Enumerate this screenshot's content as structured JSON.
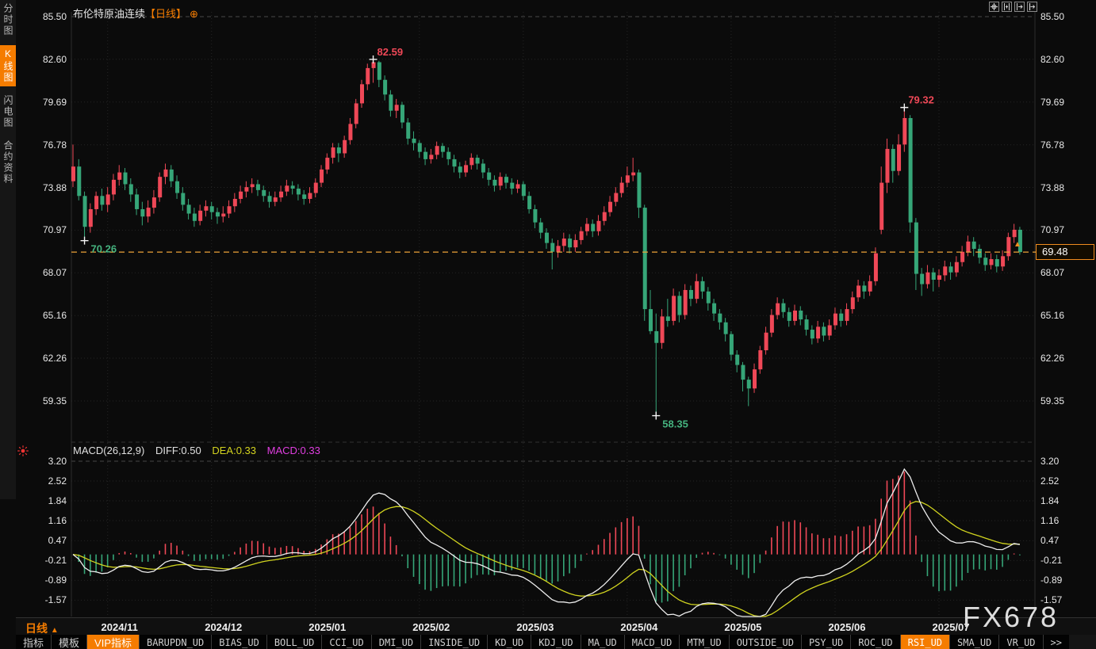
{
  "header": {
    "title": "布伦特原油连续",
    "period_tag": "【日线】",
    "add_icon": "⊕"
  },
  "toolbar_icons": [
    {
      "name": "pan-crosshair-icon"
    },
    {
      "name": "fit-y-axis-icon"
    },
    {
      "name": "fit-x-axis-icon"
    },
    {
      "name": "shift-right-icon"
    }
  ],
  "sidebar": {
    "items": [
      {
        "label": "分时图",
        "active": false
      },
      {
        "label": "K线图",
        "active": true
      },
      {
        "label": "闪电图",
        "active": false
      },
      {
        "label": "合约资料",
        "active": false
      }
    ]
  },
  "macd_header": {
    "name": "MACD(26,12,9)",
    "diff": "DIFF:0.50",
    "dea": "DEA:0.33",
    "macd": "MACD:0.33"
  },
  "last_price": {
    "label": "69.48",
    "value": 69.48,
    "marker": "▲"
  },
  "period": {
    "label": "日线",
    "marker": "▲"
  },
  "watermark": "FX678",
  "bottom_tabs": [
    {
      "label": "指标",
      "cjk": true,
      "active": false
    },
    {
      "label": "模板",
      "cjk": true,
      "active": false
    },
    {
      "label": "VIP指标",
      "cjk": true,
      "active": true
    },
    {
      "label": "BARUPDN_UD",
      "active": false
    },
    {
      "label": "BIAS_UD",
      "active": false
    },
    {
      "label": "BOLL_UD",
      "active": false
    },
    {
      "label": "CCI_UD",
      "active": false
    },
    {
      "label": "DMI_UD",
      "active": false
    },
    {
      "label": "INSIDE_UD",
      "active": false
    },
    {
      "label": "KD_UD",
      "active": false
    },
    {
      "label": "KDJ_UD",
      "active": false
    },
    {
      "label": "MA_UD",
      "active": false
    },
    {
      "label": "MACD_UD",
      "active": false
    },
    {
      "label": "MTM_UD",
      "active": false
    },
    {
      "label": "OUTSIDE_UD",
      "active": false
    },
    {
      "label": "PSY_UD",
      "active": false
    },
    {
      "label": "ROC_UD",
      "active": false
    },
    {
      "label": "RSI_UD",
      "active": true
    },
    {
      "label": "SMA_UD",
      "active": false
    },
    {
      "label": "VR_UD",
      "active": false
    },
    {
      "label": ">>",
      "active": false
    }
  ],
  "colors": {
    "up": "#ef4857",
    "down": "#36a678",
    "accent": "#f57c00",
    "dea_line": "#d0d31f",
    "diff_line": "#eeeeee",
    "macd_value": "#e03ee0",
    "anno_red": "#ef4857",
    "anno_green": "#45b37f",
    "last_price_line": "#eda338",
    "grid": "#242424",
    "grid_bright": "#474747",
    "axis_text": "#e8e8e8"
  },
  "chart_data": {
    "type": "candlestick+macd",
    "title": "布伦特原油连续 日线 (Brent Crude Oil Continuous, Daily)",
    "price_ticks": [
      85.5,
      82.6,
      79.69,
      76.78,
      73.88,
      70.97,
      68.07,
      65.16,
      62.26,
      59.35
    ],
    "macd_ticks": [
      3.2,
      2.52,
      1.84,
      1.16,
      0.47,
      -0.21,
      -0.89,
      -1.57
    ],
    "macd_params": {
      "slow": 26,
      "fast": 12,
      "signal": 9,
      "diff": 0.5,
      "dea": 0.33,
      "macd": 0.33
    },
    "months": [
      {
        "label": "2024/11",
        "start": 6
      },
      {
        "label": "2024/12",
        "start": 24
      },
      {
        "label": "2025/01",
        "start": 42
      },
      {
        "label": "2025/02",
        "start": 60
      },
      {
        "label": "2025/03",
        "start": 78
      },
      {
        "label": "2025/04",
        "start": 96
      },
      {
        "label": "2025/05",
        "start": 114
      },
      {
        "label": "2025/06",
        "start": 132
      },
      {
        "label": "2025/07",
        "start": 150
      }
    ],
    "annotations": [
      {
        "text": "82.59",
        "index": 52,
        "anchor": "high",
        "color": "#ef4857"
      },
      {
        "text": "79.32",
        "index": 144,
        "anchor": "high",
        "color": "#ef4857"
      },
      {
        "text": "70.26",
        "index": 2,
        "anchor": "low",
        "color": "#45b37f"
      },
      {
        "text": "58.35",
        "index": 101,
        "anchor": "low",
        "color": "#45b37f"
      }
    ],
    "last_close": 69.48,
    "candles": [
      [
        74.3,
        76.8,
        73.9,
        75.3
      ],
      [
        75.3,
        75.8,
        73.0,
        73.3
      ],
      [
        73.3,
        73.6,
        70.26,
        71.2
      ],
      [
        71.2,
        72.8,
        70.8,
        72.4
      ],
      [
        72.4,
        73.6,
        72.0,
        73.3
      ],
      [
        73.3,
        73.8,
        72.3,
        72.7
      ],
      [
        72.7,
        73.9,
        72.2,
        73.4
      ],
      [
        73.4,
        74.8,
        73.0,
        74.4
      ],
      [
        74.4,
        75.4,
        74.0,
        74.9
      ],
      [
        74.9,
        75.2,
        73.7,
        74.1
      ],
      [
        74.1,
        74.5,
        72.9,
        73.4
      ],
      [
        73.4,
        73.8,
        72.0,
        72.4
      ],
      [
        72.4,
        72.9,
        71.3,
        71.9
      ],
      [
        71.9,
        73.0,
        71.5,
        72.5
      ],
      [
        72.5,
        73.7,
        72.1,
        73.2
      ],
      [
        73.2,
        74.9,
        72.9,
        74.6
      ],
      [
        74.6,
        75.5,
        74.1,
        75.1
      ],
      [
        75.1,
        75.4,
        73.9,
        74.3
      ],
      [
        74.3,
        74.7,
        73.1,
        73.5
      ],
      [
        73.5,
        73.9,
        72.3,
        72.7
      ],
      [
        72.7,
        73.1,
        71.7,
        72.1
      ],
      [
        72.1,
        72.5,
        71.2,
        71.6
      ],
      [
        71.6,
        72.7,
        71.3,
        72.3
      ],
      [
        72.3,
        73.0,
        71.9,
        72.6
      ],
      [
        72.6,
        72.9,
        71.7,
        72.2
      ],
      [
        72.2,
        72.5,
        71.4,
        71.9
      ],
      [
        71.9,
        72.6,
        71.5,
        72.1
      ],
      [
        72.1,
        73.0,
        71.8,
        72.6
      ],
      [
        72.6,
        73.5,
        72.2,
        73.1
      ],
      [
        73.1,
        74.0,
        72.8,
        73.6
      ],
      [
        73.6,
        74.3,
        73.2,
        73.9
      ],
      [
        73.9,
        74.5,
        73.5,
        74.1
      ],
      [
        74.1,
        74.4,
        73.3,
        73.7
      ],
      [
        73.7,
        74.0,
        72.9,
        73.3
      ],
      [
        73.3,
        73.6,
        72.5,
        72.9
      ],
      [
        72.9,
        73.6,
        72.6,
        73.2
      ],
      [
        73.2,
        74.0,
        72.9,
        73.6
      ],
      [
        73.6,
        74.4,
        73.3,
        74.0
      ],
      [
        74.0,
        74.3,
        73.4,
        73.8
      ],
      [
        73.8,
        74.1,
        73.0,
        73.4
      ],
      [
        73.4,
        73.7,
        72.7,
        73.1
      ],
      [
        73.1,
        73.9,
        72.8,
        73.5
      ],
      [
        73.5,
        74.5,
        73.2,
        74.2
      ],
      [
        74.2,
        75.4,
        73.9,
        75.1
      ],
      [
        75.1,
        76.2,
        74.8,
        75.9
      ],
      [
        75.9,
        76.9,
        75.5,
        76.6
      ],
      [
        76.6,
        76.9,
        75.6,
        76.2
      ],
      [
        76.2,
        77.4,
        75.9,
        77.1
      ],
      [
        77.1,
        78.6,
        76.8,
        78.2
      ],
      [
        78.2,
        79.9,
        77.9,
        79.6
      ],
      [
        79.6,
        81.2,
        79.3,
        80.9
      ],
      [
        80.9,
        82.3,
        80.5,
        82.0
      ],
      [
        82.0,
        82.59,
        81.0,
        82.4
      ],
      [
        82.4,
        82.5,
        80.7,
        81.2
      ],
      [
        81.2,
        81.5,
        79.8,
        80.2
      ],
      [
        80.2,
        80.5,
        78.7,
        79.1
      ],
      [
        79.1,
        79.9,
        78.6,
        79.5
      ],
      [
        79.5,
        79.7,
        77.9,
        78.3
      ],
      [
        78.3,
        78.6,
        76.8,
        77.2
      ],
      [
        77.2,
        77.7,
        76.4,
        76.9
      ],
      [
        76.9,
        77.1,
        75.9,
        76.3
      ],
      [
        76.3,
        76.6,
        75.4,
        75.8
      ],
      [
        75.8,
        76.5,
        75.5,
        76.1
      ],
      [
        76.1,
        77.0,
        75.8,
        76.7
      ],
      [
        76.7,
        76.9,
        75.9,
        76.3
      ],
      [
        76.3,
        76.6,
        75.4,
        75.8
      ],
      [
        75.8,
        76.1,
        74.9,
        75.3
      ],
      [
        75.3,
        75.6,
        74.5,
        74.9
      ],
      [
        74.9,
        75.7,
        74.6,
        75.4
      ],
      [
        75.4,
        76.2,
        75.1,
        75.9
      ],
      [
        75.9,
        76.1,
        75.1,
        75.5
      ],
      [
        75.5,
        75.8,
        74.5,
        74.9
      ],
      [
        74.9,
        75.2,
        74.0,
        74.4
      ],
      [
        74.4,
        74.7,
        73.6,
        74.0
      ],
      [
        74.0,
        74.9,
        73.7,
        74.6
      ],
      [
        74.6,
        74.8,
        73.8,
        74.2
      ],
      [
        74.2,
        74.5,
        73.4,
        73.8
      ],
      [
        73.8,
        74.4,
        73.5,
        74.1
      ],
      [
        74.1,
        74.3,
        73.0,
        73.3
      ],
      [
        73.3,
        73.6,
        72.1,
        72.4
      ],
      [
        72.4,
        72.7,
        71.1,
        71.5
      ],
      [
        71.5,
        71.8,
        70.4,
        70.8
      ],
      [
        70.8,
        71.1,
        69.7,
        70.1
      ],
      [
        70.1,
        70.4,
        68.3,
        69.5
      ],
      [
        69.5,
        70.3,
        69.1,
        69.9
      ],
      [
        69.9,
        70.8,
        69.5,
        70.4
      ],
      [
        70.4,
        70.7,
        69.4,
        69.8
      ],
      [
        69.8,
        70.7,
        69.5,
        70.3
      ],
      [
        70.3,
        71.2,
        70.0,
        70.9
      ],
      [
        70.9,
        71.8,
        70.6,
        71.4
      ],
      [
        71.4,
        71.7,
        70.5,
        70.9
      ],
      [
        70.9,
        72.0,
        70.6,
        71.6
      ],
      [
        71.6,
        72.6,
        71.3,
        72.2
      ],
      [
        72.2,
        73.3,
        71.9,
        72.9
      ],
      [
        72.9,
        73.9,
        72.6,
        73.5
      ],
      [
        73.5,
        74.6,
        73.2,
        74.2
      ],
      [
        74.2,
        75.3,
        73.9,
        74.7
      ],
      [
        74.7,
        75.9,
        74.3,
        74.9
      ],
      [
        74.9,
        75.1,
        71.8,
        72.5
      ],
      [
        72.5,
        72.7,
        64.8,
        65.6
      ],
      [
        65.6,
        66.9,
        63.9,
        64.1
      ],
      [
        64.1,
        65.3,
        58.35,
        63.3
      ],
      [
        63.3,
        65.6,
        62.9,
        65.1
      ],
      [
        65.1,
        66.3,
        64.4,
        64.8
      ],
      [
        64.8,
        67.0,
        64.5,
        66.5
      ],
      [
        66.5,
        66.8,
        64.7,
        65.2
      ],
      [
        65.2,
        67.3,
        64.9,
        66.9
      ],
      [
        66.9,
        67.2,
        65.8,
        66.3
      ],
      [
        66.3,
        68.0,
        66.0,
        67.5
      ],
      [
        67.5,
        67.8,
        66.3,
        66.8
      ],
      [
        66.8,
        67.1,
        65.5,
        66.0
      ],
      [
        66.0,
        66.3,
        64.8,
        65.3
      ],
      [
        65.3,
        65.6,
        64.2,
        64.7
      ],
      [
        64.7,
        65.0,
        63.4,
        63.9
      ],
      [
        63.9,
        64.1,
        62.1,
        62.5
      ],
      [
        62.5,
        62.8,
        61.3,
        61.8
      ],
      [
        61.8,
        62.0,
        60.0,
        60.8
      ],
      [
        60.8,
        61.0,
        59.0,
        60.2
      ],
      [
        60.2,
        61.9,
        59.9,
        61.5
      ],
      [
        61.5,
        63.1,
        61.2,
        62.8
      ],
      [
        62.8,
        64.4,
        62.5,
        64.0
      ],
      [
        64.0,
        65.6,
        63.7,
        65.2
      ],
      [
        65.2,
        66.4,
        64.9,
        66.0
      ],
      [
        66.0,
        66.3,
        65.0,
        65.4
      ],
      [
        65.4,
        65.7,
        64.4,
        64.8
      ],
      [
        64.8,
        65.9,
        64.5,
        65.5
      ],
      [
        65.5,
        65.8,
        64.5,
        64.9
      ],
      [
        64.9,
        65.2,
        63.8,
        64.2
      ],
      [
        64.2,
        64.5,
        63.2,
        63.6
      ],
      [
        63.6,
        64.8,
        63.3,
        64.4
      ],
      [
        64.4,
        64.7,
        63.4,
        63.8
      ],
      [
        63.8,
        64.9,
        63.5,
        64.5
      ],
      [
        64.5,
        65.7,
        64.2,
        65.3
      ],
      [
        65.3,
        65.6,
        64.4,
        64.8
      ],
      [
        64.8,
        66.0,
        64.5,
        65.6
      ],
      [
        65.6,
        66.8,
        65.3,
        66.4
      ],
      [
        66.4,
        67.6,
        66.1,
        67.2
      ],
      [
        67.2,
        67.5,
        66.3,
        66.8
      ],
      [
        66.8,
        67.9,
        66.5,
        67.5
      ],
      [
        67.5,
        69.8,
        67.2,
        69.4
      ],
      [
        71.0,
        75.3,
        70.7,
        74.2
      ],
      [
        74.2,
        77.2,
        73.5,
        76.5
      ],
      [
        76.5,
        76.8,
        74.2,
        75.0
      ],
      [
        75.0,
        77.5,
        74.7,
        76.8
      ],
      [
        76.8,
        79.32,
        76.3,
        78.6
      ],
      [
        78.6,
        78.8,
        70.8,
        71.5
      ],
      [
        71.5,
        71.8,
        66.9,
        68.0
      ],
      [
        68.0,
        68.4,
        66.5,
        67.3
      ],
      [
        67.3,
        68.6,
        67.0,
        68.1
      ],
      [
        68.1,
        68.4,
        66.8,
        67.6
      ],
      [
        67.6,
        68.3,
        67.1,
        67.9
      ],
      [
        67.9,
        68.9,
        67.5,
        68.5
      ],
      [
        68.5,
        68.8,
        67.6,
        68.1
      ],
      [
        68.1,
        69.2,
        67.8,
        68.8
      ],
      [
        68.8,
        69.9,
        68.5,
        69.5
      ],
      [
        69.5,
        70.6,
        69.2,
        70.2
      ],
      [
        70.2,
        70.5,
        69.2,
        69.7
      ],
      [
        69.7,
        70.0,
        68.7,
        69.1
      ],
      [
        69.1,
        69.4,
        68.2,
        68.6
      ],
      [
        68.6,
        69.4,
        68.3,
        69.0
      ],
      [
        69.0,
        69.3,
        68.1,
        68.5
      ],
      [
        68.5,
        69.6,
        68.2,
        69.2
      ],
      [
        69.2,
        70.8,
        68.9,
        70.5
      ],
      [
        70.5,
        71.4,
        70.1,
        71.0
      ],
      [
        71.0,
        71.2,
        69.3,
        69.48
      ]
    ]
  }
}
